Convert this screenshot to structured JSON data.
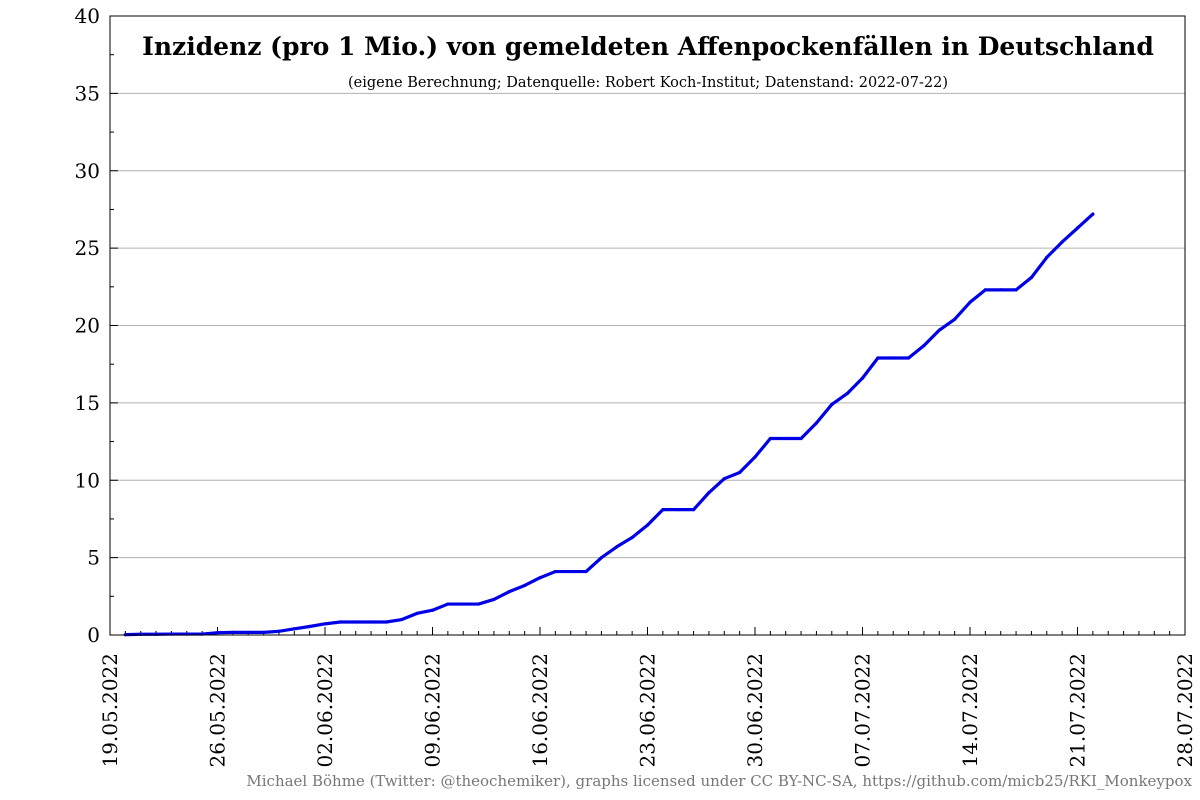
{
  "chart_data": {
    "type": "line",
    "title": "Inzidenz (pro 1 Mio.) von gemeldeten Affenpockenfällen in Deutschland",
    "subtitle": "(eigene Berechnung; Datenquelle: Robert Koch-Institut; Datenstand: 2022-07-22)",
    "footer": "Michael Böhme (Twitter: @theochemiker), graphs licensed under CC BY-NC-SA, https://github.com/micb25/RKI_Monkeypox",
    "xlabel": "",
    "ylabel": "",
    "xlim": [
      "2022-05-19",
      "2022-07-28"
    ],
    "ylim": [
      0,
      40
    ],
    "x_tick_labels": [
      "19.05.2022",
      "26.05.2022",
      "02.06.2022",
      "09.06.2022",
      "16.06.2022",
      "23.06.2022",
      "30.06.2022",
      "07.07.2022",
      "14.07.2022",
      "21.07.2022",
      "28.07.2022"
    ],
    "y_tick_labels": [
      "0",
      "5",
      "10",
      "15",
      "20",
      "25",
      "30",
      "35",
      "40"
    ],
    "grid": "horizontal",
    "line_color": "#0000e6",
    "series": [
      {
        "x": [
          "2022-05-20",
          "2022-05-21",
          "2022-05-22",
          "2022-05-23",
          "2022-05-24",
          "2022-05-25",
          "2022-05-26",
          "2022-05-27",
          "2022-05-28",
          "2022-05-29",
          "2022-05-30",
          "2022-05-31",
          "2022-06-01",
          "2022-06-02",
          "2022-06-03",
          "2022-06-04",
          "2022-06-05",
          "2022-06-06",
          "2022-06-07",
          "2022-06-08",
          "2022-06-09",
          "2022-06-10",
          "2022-06-11",
          "2022-06-12",
          "2022-06-13",
          "2022-06-14",
          "2022-06-15",
          "2022-06-16",
          "2022-06-17",
          "2022-06-18",
          "2022-06-19",
          "2022-06-20",
          "2022-06-21",
          "2022-06-22",
          "2022-06-23",
          "2022-06-24",
          "2022-06-25",
          "2022-06-26",
          "2022-06-27",
          "2022-06-28",
          "2022-06-29",
          "2022-06-30",
          "2022-07-01",
          "2022-07-02",
          "2022-07-03",
          "2022-07-04",
          "2022-07-05",
          "2022-07-06",
          "2022-07-07",
          "2022-07-08",
          "2022-07-09",
          "2022-07-10",
          "2022-07-11",
          "2022-07-12",
          "2022-07-13",
          "2022-07-14",
          "2022-07-15",
          "2022-07-16",
          "2022-07-17",
          "2022-07-18",
          "2022-07-19",
          "2022-07-20",
          "2022-07-21",
          "2022-07-22"
        ],
        "y": [
          0.02,
          0.05,
          0.05,
          0.06,
          0.06,
          0.06,
          0.15,
          0.17,
          0.17,
          0.17,
          0.24,
          0.4,
          0.55,
          0.72,
          0.84,
          0.84,
          0.84,
          0.84,
          1.0,
          1.4,
          1.6,
          2.0,
          2.0,
          2.0,
          2.3,
          2.8,
          3.2,
          3.7,
          4.1,
          4.1,
          4.1,
          5.0,
          5.7,
          6.3,
          7.1,
          8.1,
          8.1,
          8.1,
          9.2,
          10.1,
          10.5,
          11.5,
          12.7,
          12.7,
          12.7,
          13.7,
          14.9,
          15.6,
          16.6,
          17.9,
          17.9,
          17.9,
          18.7,
          19.7,
          20.4,
          21.5,
          22.3,
          22.3,
          22.3,
          23.1,
          24.4,
          25.4,
          26.3,
          27.2
        ]
      }
    ]
  }
}
